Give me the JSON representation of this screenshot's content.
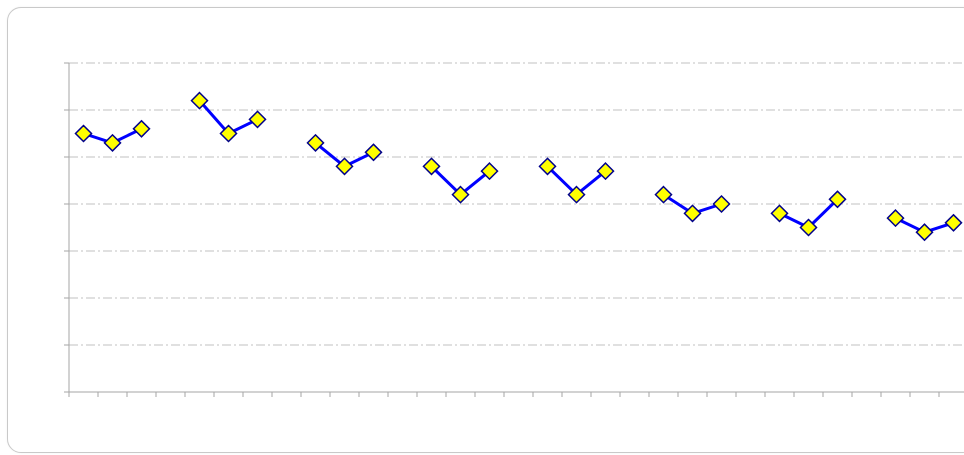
{
  "chart_data": {
    "type": "line",
    "title": "",
    "xlabel": "",
    "ylabel": "",
    "ylim": [
      0,
      7
    ],
    "grid": true,
    "legend": "none",
    "groups": [
      [
        5.5,
        5.3,
        5.6
      ],
      [
        6.2,
        5.5,
        5.8
      ],
      [
        5.3,
        4.8,
        5.1
      ],
      [
        4.8,
        4.2,
        4.7
      ],
      [
        4.8,
        4.2,
        4.7
      ],
      [
        4.2,
        3.8,
        4.0
      ],
      [
        3.8,
        3.5,
        4.1
      ],
      [
        3.7,
        3.4,
        3.6
      ]
    ],
    "colors": {
      "line": "#0000ff",
      "marker_fill": "#ffff00",
      "marker_stroke": "#00008b",
      "grid": "#c0c0c0",
      "axis": "#a6a6a6"
    }
  }
}
